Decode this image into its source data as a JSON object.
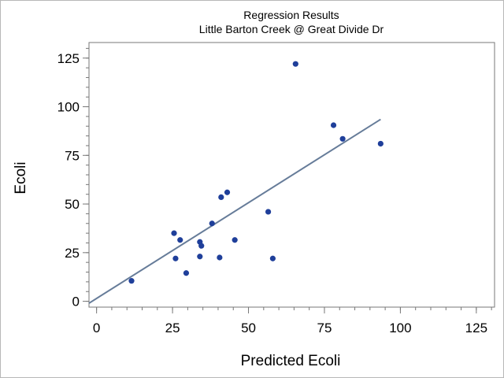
{
  "chart_data": {
    "type": "scatter",
    "title": "Regression Results",
    "subtitle": "Little Barton Creek @ Great Divide Dr",
    "xlabel": "Predicted Ecoli",
    "ylabel": "Ecoli",
    "xlim": [
      -2.5,
      131
    ],
    "ylim": [
      -3,
      133
    ],
    "xticks": [
      0,
      25,
      50,
      75,
      100,
      125
    ],
    "yticks": [
      0,
      25,
      50,
      75,
      100,
      125
    ],
    "xtick_labels": [
      "0",
      "25",
      "50",
      "75",
      "100",
      "125"
    ],
    "ytick_labels": [
      "0",
      "25",
      "50",
      "75",
      "100",
      "125"
    ],
    "minor_tick_step": 5,
    "grid": false,
    "colors": {
      "points": "#1f3f9a",
      "fit_line": "#667c99",
      "axis": "#777777",
      "frame": "#b8b8b8"
    },
    "series": [
      {
        "points": [
          {
            "x": 11.5,
            "y": 10.5
          },
          {
            "x": 25.5,
            "y": 35.0
          },
          {
            "x": 26.0,
            "y": 22.0
          },
          {
            "x": 27.5,
            "y": 31.5
          },
          {
            "x": 29.5,
            "y": 14.5
          },
          {
            "x": 34.0,
            "y": 30.5
          },
          {
            "x": 34.0,
            "y": 23.0
          },
          {
            "x": 34.5,
            "y": 28.5
          },
          {
            "x": 38.0,
            "y": 40.0
          },
          {
            "x": 40.5,
            "y": 22.5
          },
          {
            "x": 41.0,
            "y": 53.5
          },
          {
            "x": 43.0,
            "y": 56.0
          },
          {
            "x": 45.5,
            "y": 31.5
          },
          {
            "x": 56.5,
            "y": 46.0
          },
          {
            "x": 58.0,
            "y": 22.0
          },
          {
            "x": 65.5,
            "y": 122.0
          },
          {
            "x": 78.0,
            "y": 90.5
          },
          {
            "x": 81.0,
            "y": 83.5
          },
          {
            "x": 93.5,
            "y": 81.0
          }
        ]
      }
    ],
    "fit_line": {
      "x0": -2.5,
      "y0": -1.0,
      "x1": 93.5,
      "y1": 93.5
    }
  }
}
